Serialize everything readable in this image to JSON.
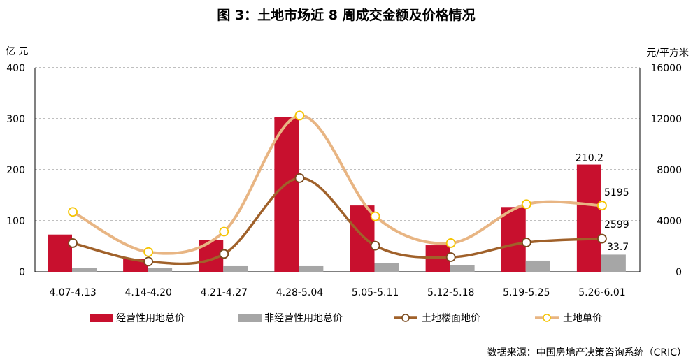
{
  "chart_data": {
    "type": "bar",
    "title": "图 3：土地市场近 8 周成交金额及价格情况",
    "y_left_unit": "亿 元",
    "y_right_unit": "元/平方米",
    "categories": [
      "4.07-4.13",
      "4.14-4.20",
      "4.21-4.27",
      "4.28-5.04",
      "5.05-5.11",
      "5.12-5.18",
      "5.19-5.25",
      "5.26-6.01"
    ],
    "y_left_ticks": [
      "0",
      "100",
      "200",
      "300",
      "400"
    ],
    "y_right_ticks": [
      "0",
      "4000",
      "8000",
      "12000",
      "16000"
    ],
    "ylim_left": [
      0,
      400
    ],
    "ylim_right": [
      0,
      16000
    ],
    "grid": "dashed horizontal",
    "legend_position": "bottom",
    "series": [
      {
        "name": "经营性用地总价",
        "kind": "bar",
        "axis": "left",
        "color": "#C8102E",
        "values": [
          73,
          25,
          62,
          304,
          130,
          52,
          127,
          210.2
        ]
      },
      {
        "name": "非经营性用地总价",
        "kind": "bar",
        "axis": "left",
        "color": "#A6A6A6",
        "values": [
          8,
          8,
          11,
          11,
          17,
          13,
          22,
          33.7
        ]
      },
      {
        "name": "土地楼面地价",
        "kind": "line",
        "axis": "right",
        "color": "#A0612A",
        "values": [
          2250,
          800,
          1400,
          7350,
          2050,
          1150,
          2300,
          2599
        ]
      },
      {
        "name": "土地单价",
        "kind": "line",
        "axis": "right",
        "color": "#E8B583",
        "values": [
          4700,
          1550,
          3150,
          12250,
          4350,
          2250,
          5300,
          5195
        ]
      }
    ],
    "data_labels": [
      "210.2",
      "5195",
      "2599",
      "33.7"
    ],
    "source": "数据来源：中国房地产决策咨询系统（CRIC）"
  }
}
